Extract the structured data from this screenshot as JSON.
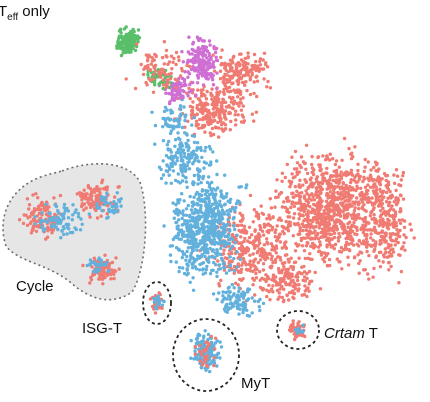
{
  "chart_data": {
    "type": "scatter",
    "title_parts": {
      "main": "T",
      "sub": "eff",
      "rest": " only"
    },
    "xlabel": "",
    "ylabel": "",
    "grid": false,
    "legend": "none",
    "series": [
      {
        "color": "#f07b72"
      },
      {
        "color": "#62b0dc"
      },
      {
        "color": "#cf6fd3"
      },
      {
        "color": "#59bf6a"
      }
    ],
    "annotations": [
      {
        "text": "Cycle"
      },
      {
        "text": "ISG-T"
      },
      {
        "text": "MyT"
      },
      {
        "text_italic": "Crtam",
        "text_rest": " T"
      }
    ]
  }
}
